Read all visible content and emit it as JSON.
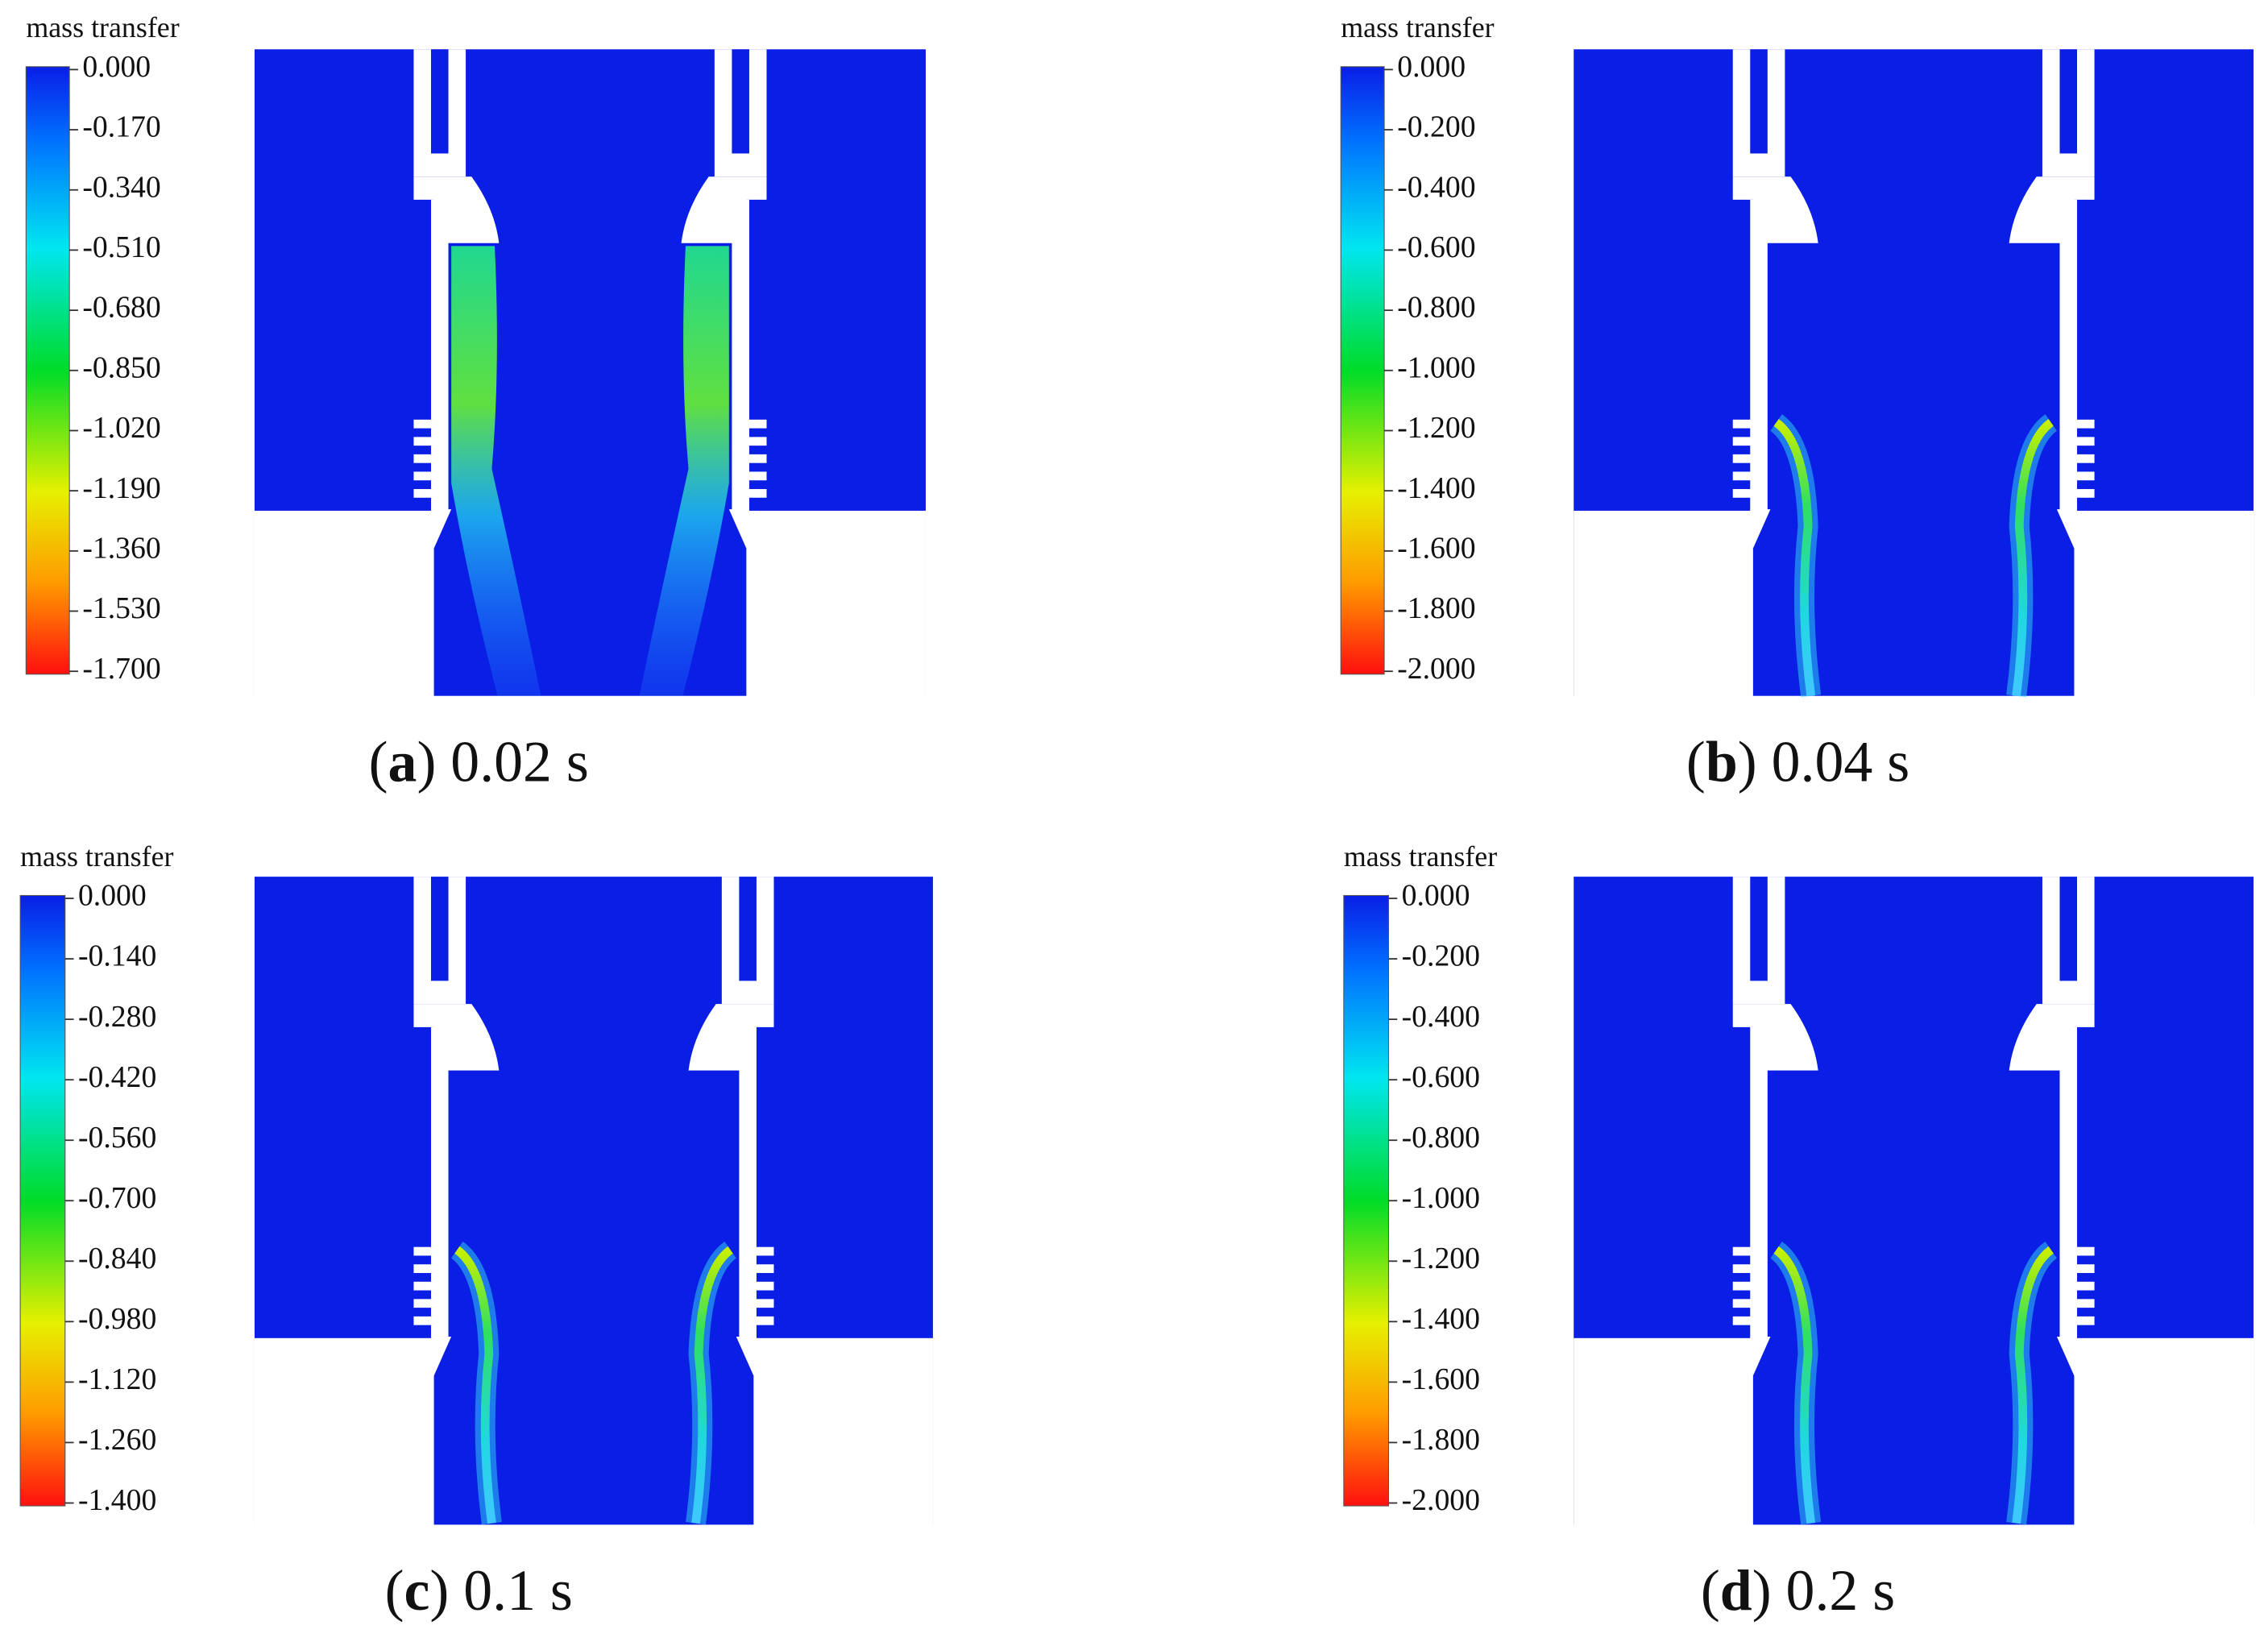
{
  "panels": [
    {
      "colorbar": {
        "title": "mass transfer",
        "ticks": [
          "0.000",
          "-0.170",
          "-0.340",
          "-0.510",
          "-0.680",
          "-0.850",
          "-1.020",
          "-1.190",
          "-1.360",
          "-1.530",
          "-1.700"
        ]
      },
      "caption": {
        "open": "(",
        "letter": "a",
        "rest": ") 0.02 s"
      }
    },
    {
      "colorbar": {
        "title": "mass transfer",
        "ticks": [
          "0.000",
          "-0.200",
          "-0.400",
          "-0.600",
          "-0.800",
          "-1.000",
          "-1.200",
          "-1.400",
          "-1.600",
          "-1.800",
          "-2.000"
        ]
      },
      "caption": {
        "open": "(",
        "letter": "b",
        "rest": ") 0.04 s"
      }
    },
    {
      "colorbar": {
        "title": "mass transfer",
        "ticks": [
          "0.000",
          "-0.140",
          "-0.280",
          "-0.420",
          "-0.560",
          "-0.700",
          "-0.840",
          "-0.980",
          "-1.120",
          "-1.260",
          "-1.400"
        ]
      },
      "caption": {
        "open": "(",
        "letter": "c",
        "rest": ") 0.1 s"
      }
    },
    {
      "colorbar": {
        "title": "mass transfer",
        "ticks": [
          "0.000",
          "-0.200",
          "-0.400",
          "-0.600",
          "-0.800",
          "-1.000",
          "-1.200",
          "-1.400",
          "-1.600",
          "-1.800",
          "-2.000"
        ]
      },
      "caption": {
        "open": "(",
        "letter": "d",
        "rest": ") 0.2 s"
      }
    }
  ]
}
